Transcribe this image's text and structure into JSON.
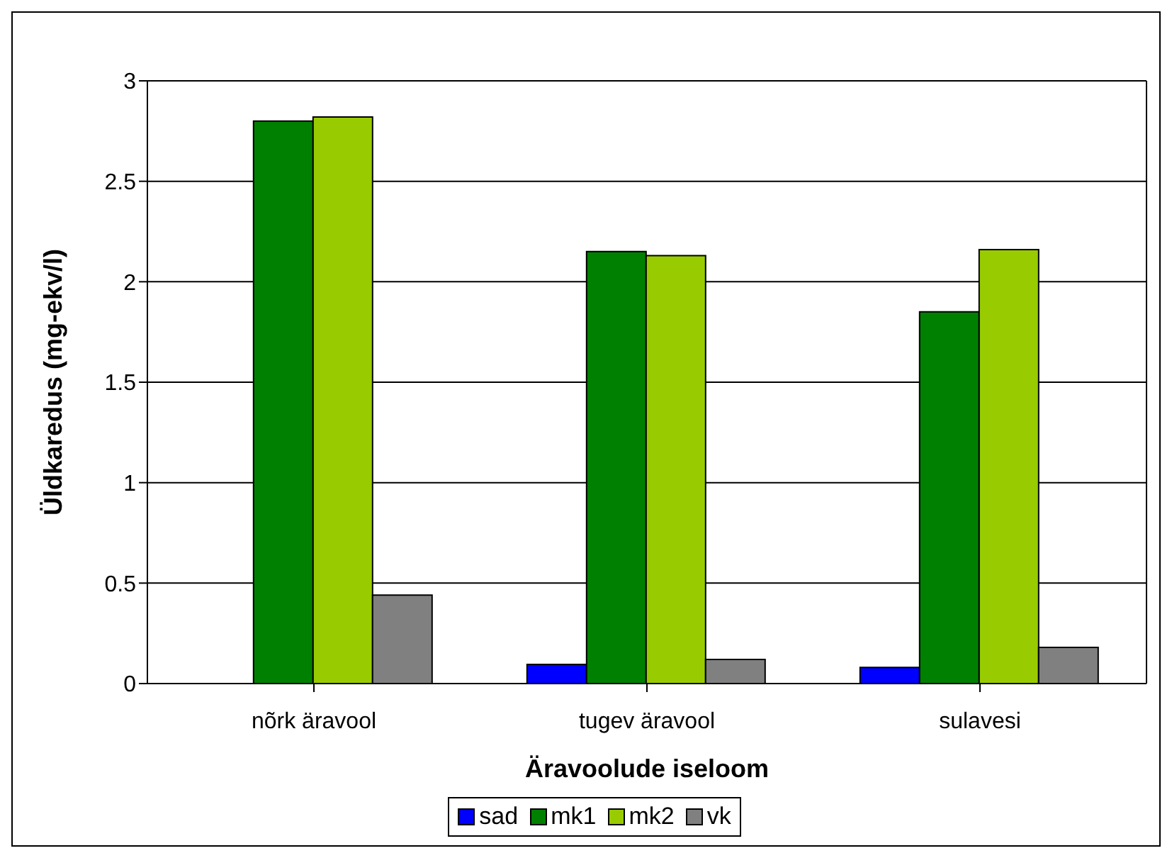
{
  "chart_data": {
    "type": "bar",
    "xlabel": "Äravoolude iseloom",
    "ylabel": "Üldkaredus (mg-ekv/l)",
    "categories": [
      "nõrk äravool",
      "tugev äravool",
      "sulavesi"
    ],
    "series": [
      {
        "name": "sad",
        "color": "#0000ff",
        "values": [
          0,
          0.095,
          0.08
        ]
      },
      {
        "name": "mk1",
        "color": "#008000",
        "values": [
          2.8,
          2.15,
          1.85
        ]
      },
      {
        "name": "mk2",
        "color": "#99cc00",
        "values": [
          2.82,
          2.13,
          2.16
        ]
      },
      {
        "name": "vk",
        "color": "#808080",
        "values": [
          0.44,
          0.12,
          0.18
        ]
      }
    ],
    "ylim": [
      0,
      3
    ],
    "yticks": [
      0,
      0.5,
      1,
      1.5,
      2,
      2.5,
      3
    ],
    "grid": "y",
    "legend": "bottom"
  }
}
